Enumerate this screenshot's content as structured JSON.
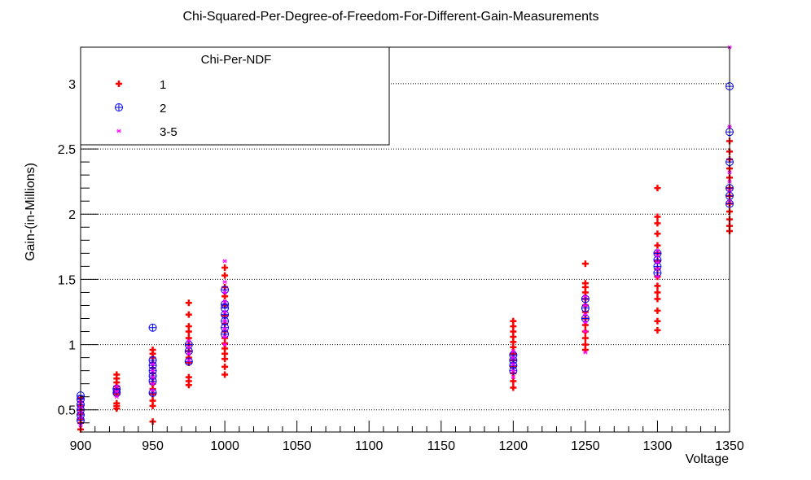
{
  "chart_data": {
    "type": "scatter",
    "title": "Chi-Squared-Per-Degree-of-Freedom-For-Different-Gain-Measurements",
    "xlabel": "Voltage",
    "ylabel": "Gain-(in-Millions)",
    "xlim": [
      900,
      1350
    ],
    "ylim": [
      0.33,
      3.28
    ],
    "x_ticks": [
      900,
      950,
      1000,
      1050,
      1100,
      1150,
      1200,
      1250,
      1300,
      1350
    ],
    "y_ticks": [
      0.5,
      1,
      1.5,
      2,
      2.5,
      3
    ],
    "grid": "horizontal-dotted",
    "legend": {
      "title": "Chi-Per-NDF",
      "placement": "top-left",
      "entries": [
        "1",
        "2",
        "3-5"
      ]
    },
    "series": [
      {
        "name": "1",
        "marker": "plus",
        "color": "#ff0000",
        "points": [
          [
            900,
            0.35
          ],
          [
            900,
            0.4
          ],
          [
            900,
            0.43
          ],
          [
            900,
            0.47
          ],
          [
            900,
            0.5
          ],
          [
            900,
            0.53
          ],
          [
            900,
            0.56
          ],
          [
            900,
            0.59
          ],
          [
            925,
            0.51
          ],
          [
            925,
            0.53
          ],
          [
            925,
            0.55
          ],
          [
            925,
            0.62
          ],
          [
            925,
            0.64
          ],
          [
            925,
            0.66
          ],
          [
            925,
            0.68
          ],
          [
            925,
            0.71
          ],
          [
            925,
            0.74
          ],
          [
            925,
            0.77
          ],
          [
            950,
            0.41
          ],
          [
            950,
            0.53
          ],
          [
            950,
            0.57
          ],
          [
            950,
            0.62
          ],
          [
            950,
            0.66
          ],
          [
            950,
            0.7
          ],
          [
            950,
            0.74
          ],
          [
            950,
            0.78
          ],
          [
            950,
            0.82
          ],
          [
            950,
            0.86
          ],
          [
            950,
            0.9
          ],
          [
            950,
            0.93
          ],
          [
            950,
            0.96
          ],
          [
            975,
            0.69
          ],
          [
            975,
            0.72
          ],
          [
            975,
            0.75
          ],
          [
            975,
            0.86
          ],
          [
            975,
            0.9
          ],
          [
            975,
            0.95
          ],
          [
            975,
            1.0
          ],
          [
            975,
            1.05
          ],
          [
            975,
            1.1
          ],
          [
            975,
            1.14
          ],
          [
            975,
            1.23
          ],
          [
            975,
            1.32
          ],
          [
            1000,
            0.77
          ],
          [
            1000,
            0.83
          ],
          [
            1000,
            0.89
          ],
          [
            1000,
            0.93
          ],
          [
            1000,
            0.97
          ],
          [
            1000,
            1.01
          ],
          [
            1000,
            1.05
          ],
          [
            1000,
            1.1
          ],
          [
            1000,
            1.16
          ],
          [
            1000,
            1.22
          ],
          [
            1000,
            1.3
          ],
          [
            1000,
            1.37
          ],
          [
            1000,
            1.44
          ],
          [
            1000,
            1.53
          ],
          [
            1000,
            1.59
          ],
          [
            1200,
            0.67
          ],
          [
            1200,
            0.72
          ],
          [
            1200,
            0.78
          ],
          [
            1200,
            0.83
          ],
          [
            1200,
            0.88
          ],
          [
            1200,
            0.93
          ],
          [
            1200,
            0.98
          ],
          [
            1200,
            1.02
          ],
          [
            1200,
            1.06
          ],
          [
            1200,
            1.1
          ],
          [
            1200,
            1.14
          ],
          [
            1200,
            1.18
          ],
          [
            1250,
            0.96
          ],
          [
            1250,
            1.0
          ],
          [
            1250,
            1.05
          ],
          [
            1250,
            1.1
          ],
          [
            1250,
            1.15
          ],
          [
            1250,
            1.2
          ],
          [
            1250,
            1.25
          ],
          [
            1250,
            1.3
          ],
          [
            1250,
            1.35
          ],
          [
            1250,
            1.4
          ],
          [
            1250,
            1.44
          ],
          [
            1250,
            1.47
          ],
          [
            1250,
            1.62
          ],
          [
            1300,
            1.11
          ],
          [
            1300,
            1.18
          ],
          [
            1300,
            1.26
          ],
          [
            1300,
            1.35
          ],
          [
            1300,
            1.4
          ],
          [
            1300,
            1.45
          ],
          [
            1300,
            1.52
          ],
          [
            1300,
            1.58
          ],
          [
            1300,
            1.64
          ],
          [
            1300,
            1.7
          ],
          [
            1300,
            1.76
          ],
          [
            1300,
            1.85
          ],
          [
            1300,
            1.93
          ],
          [
            1300,
            1.98
          ],
          [
            1300,
            2.2
          ],
          [
            1350,
            1.87
          ],
          [
            1350,
            1.91
          ],
          [
            1350,
            1.96
          ],
          [
            1350,
            2.02
          ],
          [
            1350,
            2.08
          ],
          [
            1350,
            2.14
          ],
          [
            1350,
            2.2
          ],
          [
            1350,
            2.28
          ],
          [
            1350,
            2.35
          ],
          [
            1350,
            2.42
          ],
          [
            1350,
            2.48
          ],
          [
            1350,
            2.56
          ]
        ]
      },
      {
        "name": "2",
        "marker": "circle-plus",
        "color": "#0000ff",
        "points": [
          [
            900,
            0.42
          ],
          [
            900,
            0.46
          ],
          [
            900,
            0.5
          ],
          [
            900,
            0.54
          ],
          [
            900,
            0.58
          ],
          [
            900,
            0.61
          ],
          [
            925,
            0.63
          ],
          [
            925,
            0.66
          ],
          [
            950,
            0.63
          ],
          [
            950,
            0.72
          ],
          [
            950,
            0.76
          ],
          [
            950,
            0.8
          ],
          [
            950,
            0.84
          ],
          [
            950,
            0.88
          ],
          [
            950,
            1.13
          ],
          [
            975,
            0.87
          ],
          [
            975,
            0.95
          ],
          [
            975,
            1.0
          ],
          [
            1000,
            1.08
          ],
          [
            1000,
            1.13
          ],
          [
            1000,
            1.18
          ],
          [
            1000,
            1.23
          ],
          [
            1000,
            1.28
          ],
          [
            1000,
            1.31
          ],
          [
            1000,
            1.42
          ],
          [
            1200,
            0.8
          ],
          [
            1200,
            0.84
          ],
          [
            1200,
            0.88
          ],
          [
            1200,
            0.92
          ],
          [
            1250,
            1.2
          ],
          [
            1250,
            1.28
          ],
          [
            1250,
            1.35
          ],
          [
            1300,
            1.55
          ],
          [
            1300,
            1.6
          ],
          [
            1300,
            1.65
          ],
          [
            1300,
            1.7
          ],
          [
            1350,
            2.08
          ],
          [
            1350,
            2.14
          ],
          [
            1350,
            2.2
          ],
          [
            1350,
            2.4
          ],
          [
            1350,
            2.63
          ],
          [
            1350,
            2.98
          ]
        ]
      },
      {
        "name": "3-5",
        "marker": "star",
        "color": "#ff00ff",
        "points": [
          [
            900,
            0.38
          ],
          [
            900,
            0.44
          ],
          [
            900,
            0.48
          ],
          [
            900,
            0.52
          ],
          [
            900,
            0.56
          ],
          [
            925,
            0.6
          ],
          [
            925,
            0.64
          ],
          [
            925,
            0.68
          ],
          [
            950,
            0.65
          ],
          [
            950,
            0.7
          ],
          [
            950,
            0.75
          ],
          [
            950,
            0.8
          ],
          [
            950,
            0.85
          ],
          [
            975,
            0.88
          ],
          [
            975,
            0.93
          ],
          [
            975,
            0.98
          ],
          [
            975,
            1.03
          ],
          [
            1000,
            1.0
          ],
          [
            1000,
            1.06
          ],
          [
            1000,
            1.12
          ],
          [
            1000,
            1.18
          ],
          [
            1000,
            1.25
          ],
          [
            1000,
            1.33
          ],
          [
            1000,
            1.4
          ],
          [
            1000,
            1.48
          ],
          [
            1000,
            1.64
          ],
          [
            1200,
            0.75
          ],
          [
            1200,
            0.8
          ],
          [
            1200,
            0.85
          ],
          [
            1200,
            0.9
          ],
          [
            1200,
            0.95
          ],
          [
            1250,
            0.94
          ],
          [
            1250,
            1.1
          ],
          [
            1250,
            1.17
          ],
          [
            1250,
            1.23
          ],
          [
            1250,
            1.3
          ],
          [
            1250,
            1.37
          ],
          [
            1300,
            1.52
          ],
          [
            1300,
            1.58
          ],
          [
            1300,
            1.63
          ],
          [
            1300,
            1.68
          ],
          [
            1300,
            1.72
          ],
          [
            1350,
            2.1
          ],
          [
            1350,
            2.18
          ],
          [
            1350,
            2.25
          ],
          [
            1350,
            2.32
          ],
          [
            1350,
            2.67
          ],
          [
            1350,
            3.28
          ]
        ]
      }
    ]
  }
}
